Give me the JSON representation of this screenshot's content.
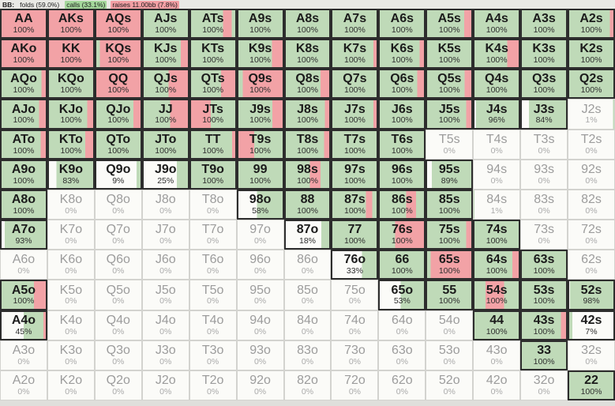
{
  "header": {
    "position_label": "BB:",
    "folds_label": "folds (59.0%)",
    "calls_label": "calls (33.1%)",
    "raises_label": "raises 11.00bb (7.8%)"
  },
  "colors": {
    "raise": "#f2a2a6",
    "call": "#bfdab8",
    "fold": "#fbfbf8",
    "header_calls_bg": "#a4d79b",
    "header_raises_bg": "#f29fa4",
    "active_border": "#2d2d2d",
    "inactive_border": "#d3d3cf"
  },
  "grid": {
    "rows": [
      [
        {
          "h": "AA",
          "p": "100%",
          "s": "r1"
        },
        {
          "h": "AKs",
          "p": "100%",
          "s": "r1"
        },
        {
          "h": "AQs",
          "p": "100%",
          "s": "r1"
        },
        {
          "h": "AJs",
          "p": "100%",
          "s": "g1"
        },
        {
          "h": "ATs",
          "p": "100%",
          "s": "g.72 r.2 g.08"
        },
        {
          "h": "A9s",
          "p": "100%",
          "s": "g1"
        },
        {
          "h": "A8s",
          "p": "100%",
          "s": "g1"
        },
        {
          "h": "A7s",
          "p": "100%",
          "s": "g1"
        },
        {
          "h": "A6s",
          "p": "100%",
          "s": "g1"
        },
        {
          "h": "A5s",
          "p": "100%",
          "s": "g.84 r.16"
        },
        {
          "h": "A4s",
          "p": "100%",
          "s": "g1"
        },
        {
          "h": "A3s",
          "p": "100%",
          "s": "g1"
        },
        {
          "h": "A2s",
          "p": "100%",
          "s": "g.92 r.08"
        }
      ],
      [
        {
          "h": "AKo",
          "p": "100%",
          "s": "r1"
        },
        {
          "h": "KK",
          "p": "100%",
          "s": "r1"
        },
        {
          "h": "KQs",
          "p": "100%",
          "s": "g.08 r.92"
        },
        {
          "h": "KJs",
          "p": "100%",
          "s": "g.84 r.16"
        },
        {
          "h": "KTs",
          "p": "100%",
          "s": "g1"
        },
        {
          "h": "K9s",
          "p": "100%",
          "s": "g.76 r.24"
        },
        {
          "h": "K8s",
          "p": "100%",
          "s": "g1"
        },
        {
          "h": "K7s",
          "p": "100%",
          "s": "g.93 r.07"
        },
        {
          "h": "K6s",
          "p": "100%",
          "s": "g.9 r.1"
        },
        {
          "h": "K5s",
          "p": "100%",
          "s": "g1"
        },
        {
          "h": "K4s",
          "p": "100%",
          "s": "g.74 r.26"
        },
        {
          "h": "K3s",
          "p": "100%",
          "s": "g1"
        },
        {
          "h": "K2s",
          "p": "100%",
          "s": "g1"
        }
      ],
      [
        {
          "h": "AQo",
          "p": "100%",
          "s": "g.9 r.1"
        },
        {
          "h": "KQo",
          "p": "100%",
          "s": "g1"
        },
        {
          "h": "QQ",
          "p": "100%",
          "s": "r1"
        },
        {
          "h": "QJs",
          "p": "100%",
          "s": "g.56 r.44"
        },
        {
          "h": "QTs",
          "p": "100%",
          "s": "g.68 r.32"
        },
        {
          "h": "Q9s",
          "p": "100%",
          "s": "g.1 r.9"
        },
        {
          "h": "Q8s",
          "p": "100%",
          "s": "g.8 r.2"
        },
        {
          "h": "Q7s",
          "p": "100%",
          "s": "g1"
        },
        {
          "h": "Q6s",
          "p": "100%",
          "s": "g.85 r.15"
        },
        {
          "h": "Q5s",
          "p": "100%",
          "s": "g.85 r.15"
        },
        {
          "h": "Q4s",
          "p": "100%",
          "s": "g1"
        },
        {
          "h": "Q3s",
          "p": "100%",
          "s": "g1"
        },
        {
          "h": "Q2s",
          "p": "100%",
          "s": "g1"
        }
      ],
      [
        {
          "h": "AJo",
          "p": "100%",
          "s": "g.85 r.15"
        },
        {
          "h": "KJo",
          "p": "100%",
          "s": "g.87 r.13"
        },
        {
          "h": "QJo",
          "p": "100%",
          "s": "g.84 r.16"
        },
        {
          "h": "JJ",
          "p": "100%",
          "s": "g.6 r.4"
        },
        {
          "h": "JTs",
          "p": "100%",
          "s": "r.45 g.55"
        },
        {
          "h": "J9s",
          "p": "100%",
          "s": "g.77 r.23"
        },
        {
          "h": "J8s",
          "p": "100%",
          "s": "g.9 r.1"
        },
        {
          "h": "J7s",
          "p": "100%",
          "s": "g.93 r.07"
        },
        {
          "h": "J6s",
          "p": "100%",
          "s": "g1"
        },
        {
          "h": "J5s",
          "p": "100%",
          "s": "g.88 r.12"
        },
        {
          "h": "J4s",
          "p": "96%",
          "s": "w.04 g.96"
        },
        {
          "h": "J3s",
          "p": "84%",
          "s": "w.16 g.84"
        },
        {
          "h": "J2s",
          "p": "1%",
          "s": "w.97 g.03"
        }
      ],
      [
        {
          "h": "ATo",
          "p": "100%",
          "s": "g.88 r.12"
        },
        {
          "h": "KTo",
          "p": "100%",
          "s": "g.82 r.18"
        },
        {
          "h": "QTo",
          "p": "100%",
          "s": "g1"
        },
        {
          "h": "JTo",
          "p": "100%",
          "s": "g1"
        },
        {
          "h": "TT",
          "p": "100%",
          "s": "g.93 r.07"
        },
        {
          "h": "T9s",
          "p": "100%",
          "s": "r.36 g.64"
        },
        {
          "h": "T8s",
          "p": "100%",
          "s": "g.88 r.12"
        },
        {
          "h": "T7s",
          "p": "100%",
          "s": "g1"
        },
        {
          "h": "T6s",
          "p": "100%",
          "s": "g1"
        },
        {
          "h": "T5s",
          "p": "0%",
          "s": "w1"
        },
        {
          "h": "T4s",
          "p": "0%",
          "s": "w1"
        },
        {
          "h": "T3s",
          "p": "0%",
          "s": "w1"
        },
        {
          "h": "T2s",
          "p": "0%",
          "s": "w1"
        }
      ],
      [
        {
          "h": "A9o",
          "p": "100%",
          "s": "g1"
        },
        {
          "h": "K9o",
          "p": "83%",
          "s": "w.17 g.83"
        },
        {
          "h": "Q9o",
          "p": "9%",
          "s": "w.91 g.09"
        },
        {
          "h": "J9o",
          "p": "25%",
          "s": "w.75 g.25"
        },
        {
          "h": "T9o",
          "p": "100%",
          "s": "g1"
        },
        {
          "h": "99",
          "p": "100%",
          "s": "g1"
        },
        {
          "h": "98s",
          "p": "100%",
          "s": "g.55 r.25 g.2"
        },
        {
          "h": "97s",
          "p": "100%",
          "s": "g1"
        },
        {
          "h": "96s",
          "p": "100%",
          "s": "g1"
        },
        {
          "h": "95s",
          "p": "89%",
          "s": "w.11 g.89"
        },
        {
          "h": "94s",
          "p": "0%",
          "s": "w1"
        },
        {
          "h": "93s",
          "p": "0%",
          "s": "w1"
        },
        {
          "h": "92s",
          "p": "0%",
          "s": "w1"
        }
      ],
      [
        {
          "h": "A8o",
          "p": "100%",
          "s": "g1"
        },
        {
          "h": "K8o",
          "p": "0%",
          "s": "w1"
        },
        {
          "h": "Q8o",
          "p": "0%",
          "s": "w1"
        },
        {
          "h": "J8o",
          "p": "0%",
          "s": "w1"
        },
        {
          "h": "T8o",
          "p": "0%",
          "s": "w1"
        },
        {
          "h": "98o",
          "p": "58%",
          "s": "w.42 g.58"
        },
        {
          "h": "88",
          "p": "100%",
          "s": "g1"
        },
        {
          "h": "87s",
          "p": "100%",
          "s": "g.76 r.14 g.1"
        },
        {
          "h": "86s",
          "p": "100%",
          "s": "g.6 r.22 g.18"
        },
        {
          "h": "85s",
          "p": "100%",
          "s": "g1"
        },
        {
          "h": "84s",
          "p": "1%",
          "s": "g.02 w.98"
        },
        {
          "h": "83s",
          "p": "0%",
          "s": "w1"
        },
        {
          "h": "82s",
          "p": "0%",
          "s": "w1"
        }
      ],
      [
        {
          "h": "A7o",
          "p": "93%",
          "s": "w.07 g.93"
        },
        {
          "h": "K7o",
          "p": "0%",
          "s": "w1"
        },
        {
          "h": "Q7o",
          "p": "0%",
          "s": "w1"
        },
        {
          "h": "J7o",
          "p": "0%",
          "s": "w1"
        },
        {
          "h": "T7o",
          "p": "0%",
          "s": "w1"
        },
        {
          "h": "97o",
          "p": "0%",
          "s": "w1"
        },
        {
          "h": "87o",
          "p": "18%",
          "s": "w.82 g.18"
        },
        {
          "h": "77",
          "p": "100%",
          "s": "g1"
        },
        {
          "h": "76s",
          "p": "100%",
          "s": "g.35 r.65"
        },
        {
          "h": "75s",
          "p": "100%",
          "s": "g.88 r.12"
        },
        {
          "h": "74s",
          "p": "100%",
          "s": "g1"
        },
        {
          "h": "73s",
          "p": "0%",
          "s": "w1"
        },
        {
          "h": "72s",
          "p": "0%",
          "s": "w1"
        }
      ],
      [
        {
          "h": "A6o",
          "p": "0%",
          "s": "w1"
        },
        {
          "h": "K6o",
          "p": "0%",
          "s": "w1"
        },
        {
          "h": "Q6o",
          "p": "0%",
          "s": "w1"
        },
        {
          "h": "J6o",
          "p": "0%",
          "s": "w1"
        },
        {
          "h": "T6o",
          "p": "0%",
          "s": "w1"
        },
        {
          "h": "96o",
          "p": "0%",
          "s": "w1"
        },
        {
          "h": "86o",
          "p": "0%",
          "s": "w1"
        },
        {
          "h": "76o",
          "p": "33%",
          "s": "w.67 g.33"
        },
        {
          "h": "66",
          "p": "100%",
          "s": "g1"
        },
        {
          "h": "65s",
          "p": "100%",
          "s": "g.08 r.92"
        },
        {
          "h": "64s",
          "p": "100%",
          "s": "g.86 r.14"
        },
        {
          "h": "63s",
          "p": "100%",
          "s": "g1"
        },
        {
          "h": "62s",
          "p": "0%",
          "s": "w1"
        }
      ],
      [
        {
          "h": "A5o",
          "p": "100%",
          "s": "g.73 r.27"
        },
        {
          "h": "K5o",
          "p": "0%",
          "s": "w1"
        },
        {
          "h": "Q5o",
          "p": "0%",
          "s": "w1"
        },
        {
          "h": "J5o",
          "p": "0%",
          "s": "w1"
        },
        {
          "h": "T5o",
          "p": "0%",
          "s": "w1"
        },
        {
          "h": "95o",
          "p": "0%",
          "s": "w1"
        },
        {
          "h": "85o",
          "p": "0%",
          "s": "w1"
        },
        {
          "h": "75o",
          "p": "0%",
          "s": "w1"
        },
        {
          "h": "65o",
          "p": "53%",
          "s": "w.47 g.53"
        },
        {
          "h": "55",
          "p": "100%",
          "s": "g1"
        },
        {
          "h": "54s",
          "p": "100%",
          "s": "g.25 r.42 g.33"
        },
        {
          "h": "53s",
          "p": "100%",
          "s": "g1"
        },
        {
          "h": "52s",
          "p": "98%",
          "s": "w.02 g.98"
        }
      ],
      [
        {
          "h": "A4o",
          "p": "45%",
          "s": "w.5 g.45 r.05"
        },
        {
          "h": "K4o",
          "p": "0%",
          "s": "w1"
        },
        {
          "h": "Q4o",
          "p": "0%",
          "s": "w1"
        },
        {
          "h": "J4o",
          "p": "0%",
          "s": "w1"
        },
        {
          "h": "T4o",
          "p": "0%",
          "s": "w1"
        },
        {
          "h": "94o",
          "p": "0%",
          "s": "w1"
        },
        {
          "h": "84o",
          "p": "0%",
          "s": "w1"
        },
        {
          "h": "74o",
          "p": "0%",
          "s": "w1"
        },
        {
          "h": "64o",
          "p": "0%",
          "s": "w1"
        },
        {
          "h": "54o",
          "p": "0%",
          "s": "w1"
        },
        {
          "h": "44",
          "p": "100%",
          "s": "g1"
        },
        {
          "h": "43s",
          "p": "100%",
          "s": "g.88 r.12"
        },
        {
          "h": "42s",
          "p": "7%",
          "s": "g.07 w.93"
        }
      ],
      [
        {
          "h": "A3o",
          "p": "0%",
          "s": "w1"
        },
        {
          "h": "K3o",
          "p": "0%",
          "s": "w1"
        },
        {
          "h": "Q3o",
          "p": "0%",
          "s": "w1"
        },
        {
          "h": "J3o",
          "p": "0%",
          "s": "w1"
        },
        {
          "h": "T3o",
          "p": "0%",
          "s": "w1"
        },
        {
          "h": "93o",
          "p": "0%",
          "s": "w1"
        },
        {
          "h": "83o",
          "p": "0%",
          "s": "w1"
        },
        {
          "h": "73o",
          "p": "0%",
          "s": "w1"
        },
        {
          "h": "63o",
          "p": "0%",
          "s": "w1"
        },
        {
          "h": "53o",
          "p": "0%",
          "s": "w1"
        },
        {
          "h": "43o",
          "p": "0%",
          "s": "w1"
        },
        {
          "h": "33",
          "p": "100%",
          "s": "g1"
        },
        {
          "h": "32s",
          "p": "0%",
          "s": "w1"
        }
      ],
      [
        {
          "h": "A2o",
          "p": "0%",
          "s": "w1"
        },
        {
          "h": "K2o",
          "p": "0%",
          "s": "w1"
        },
        {
          "h": "Q2o",
          "p": "0%",
          "s": "w1"
        },
        {
          "h": "J2o",
          "p": "0%",
          "s": "w1"
        },
        {
          "h": "T2o",
          "p": "0%",
          "s": "w1"
        },
        {
          "h": "92o",
          "p": "0%",
          "s": "w1"
        },
        {
          "h": "82o",
          "p": "0%",
          "s": "w1"
        },
        {
          "h": "72o",
          "p": "0%",
          "s": "w1"
        },
        {
          "h": "62o",
          "p": "0%",
          "s": "w1"
        },
        {
          "h": "52o",
          "p": "0%",
          "s": "w1"
        },
        {
          "h": "42o",
          "p": "0%",
          "s": "w1"
        },
        {
          "h": "32o",
          "p": "0%",
          "s": "w1"
        },
        {
          "h": "22",
          "p": "100%",
          "s": "g1"
        }
      ]
    ]
  }
}
